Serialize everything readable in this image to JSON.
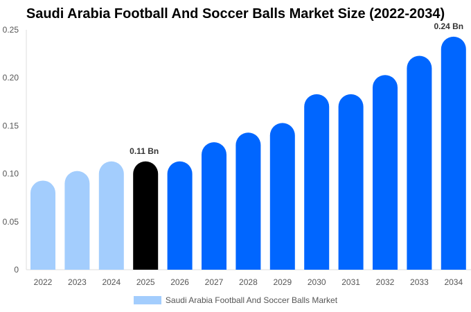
{
  "chart_data": {
    "type": "bar",
    "title": "Saudi Arabia Football And Soccer Balls Market Size (2022-2034)",
    "categories": [
      "2022",
      "2023",
      "2024",
      "2025",
      "2026",
      "2027",
      "2028",
      "2029",
      "2030",
      "2031",
      "2032",
      "2033",
      "2034"
    ],
    "series": [
      {
        "name": "Saudi Arabia Football And Soccer Balls Market",
        "values": [
          0.09,
          0.1,
          0.11,
          0.11,
          0.11,
          0.13,
          0.14,
          0.15,
          0.18,
          0.18,
          0.2,
          0.22,
          0.24
        ]
      }
    ],
    "bar_colors": [
      "#a3cdfd",
      "#a3cdfd",
      "#a3cdfd",
      "#000000",
      "#0066ff",
      "#0066ff",
      "#0066ff",
      "#0066ff",
      "#0066ff",
      "#0066ff",
      "#0066ff",
      "#0066ff",
      "#0066ff"
    ],
    "data_labels": {
      "2025": "0.11 Bn",
      "2034": "0.24 Bn"
    },
    "yticks": [
      "0",
      "0.05",
      "0.10",
      "0.15",
      "0.20",
      "0.25"
    ],
    "ylim": [
      0,
      0.25
    ],
    "grid": false,
    "legend_position": "bottom",
    "legend_color": "#a3cdfd"
  }
}
